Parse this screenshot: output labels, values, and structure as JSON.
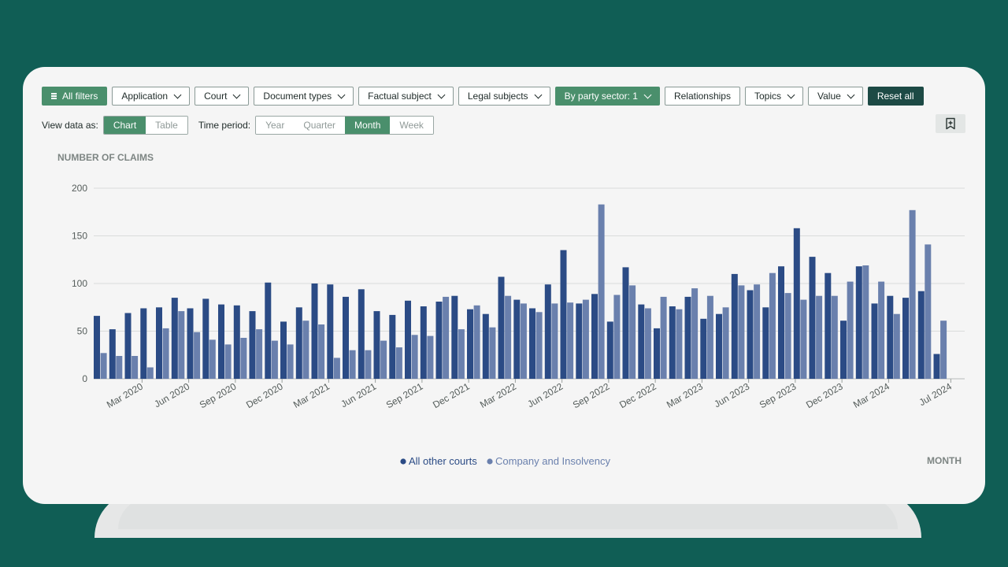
{
  "filters": {
    "all_filters": "All filters",
    "application": "Application",
    "court": "Court",
    "document_types": "Document types",
    "factual_subject": "Factual subject",
    "legal_subjects": "Legal subjects",
    "party_sector": "By party sector: 1",
    "relationships": "Relationships",
    "topics": "Topics",
    "value": "Value",
    "reset_all": "Reset all"
  },
  "view": {
    "label": "View data as:",
    "options": [
      "Chart",
      "Table"
    ],
    "selected": "Chart"
  },
  "period": {
    "label": "Time period:",
    "options": [
      "Year",
      "Quarter",
      "Month",
      "Week"
    ],
    "selected": "Month"
  },
  "icons": {
    "bookmark": "bookmark-plus-icon",
    "filters": "filter-lines-icon",
    "chevron": "chevron-down-icon"
  },
  "colors": {
    "background": "#105e55",
    "accent_green": "#4a8f6c",
    "dark_button": "#1d4a45",
    "series_1": "#2b4b85",
    "series_2": "#6a80ad"
  },
  "chart_data": {
    "type": "bar",
    "ylabel": "NUMBER OF CLAIMS",
    "xlabel": "MONTH",
    "ylim": [
      0,
      200
    ],
    "yticks": [
      0,
      50,
      100,
      150,
      200
    ],
    "grid": true,
    "legend": "bottom-center",
    "categories": [
      "Jan 2020",
      "Feb 2020",
      "Mar 2020",
      "Apr 2020",
      "May 2020",
      "Jun 2020",
      "Jul 2020",
      "Aug 2020",
      "Sep 2020",
      "Oct 2020",
      "Nov 2020",
      "Dec 2020",
      "Jan 2021",
      "Feb 2021",
      "Mar 2021",
      "Apr 2021",
      "May 2021",
      "Jun 2021",
      "Jul 2021",
      "Aug 2021",
      "Sep 2021",
      "Oct 2021",
      "Nov 2021",
      "Dec 2021",
      "Jan 2022",
      "Feb 2022",
      "Mar 2022",
      "Apr 2022",
      "May 2022",
      "Jun 2022",
      "Jul 2022",
      "Aug 2022",
      "Sep 2022",
      "Oct 2022",
      "Nov 2022",
      "Dec 2022",
      "Jan 2023",
      "Feb 2023",
      "Mar 2023",
      "Apr 2023",
      "May 2023",
      "Jun 2023",
      "Jul 2023",
      "Aug 2023",
      "Sep 2023",
      "Oct 2023",
      "Nov 2023",
      "Dec 2023",
      "Jan 2024",
      "Feb 2024",
      "Mar 2024",
      "Apr 2024",
      "May 2024",
      "Jun 2024",
      "Jul 2024",
      "Aug 2024"
    ],
    "tick_labels": [
      "Mar 2020",
      "Jun 2020",
      "Sep 2020",
      "Dec 2020",
      "Mar 2021",
      "Jun 2021",
      "Sep 2021",
      "Dec 2021",
      "Mar 2022",
      "Jun 2022",
      "Sep 2022",
      "Dec 2022",
      "Mar 2023",
      "Jun 2023",
      "Sep 2023",
      "Dec 2023",
      "Mar 2024",
      "Jul 2024"
    ],
    "series": [
      {
        "name": "All other courts",
        "color": "#2b4b85",
        "values": [
          66,
          52,
          69,
          74,
          75,
          85,
          74,
          84,
          78,
          77,
          71,
          101,
          60,
          75,
          100,
          99,
          86,
          94,
          71,
          67,
          82,
          76,
          81,
          87,
          73,
          68,
          107,
          83,
          74,
          99,
          135,
          79,
          89,
          60,
          117,
          78,
          53,
          76,
          86,
          63,
          68,
          110,
          93,
          75,
          118,
          158,
          128,
          111,
          61,
          118,
          79,
          87,
          85,
          92,
          26,
          0
        ]
      },
      {
        "name": "Company and Insolvency",
        "color": "#6a80ad",
        "values": [
          27,
          24,
          24,
          12,
          53,
          71,
          49,
          41,
          36,
          43,
          52,
          40,
          36,
          61,
          57,
          22,
          30,
          30,
          40,
          33,
          46,
          45,
          86,
          52,
          77,
          54,
          87,
          79,
          70,
          79,
          80,
          83,
          183,
          88,
          98,
          74,
          86,
          73,
          95,
          87,
          75,
          98,
          99,
          111,
          90,
          83,
          87,
          87,
          102,
          119,
          102,
          68,
          177,
          141,
          61,
          0
        ]
      }
    ]
  }
}
